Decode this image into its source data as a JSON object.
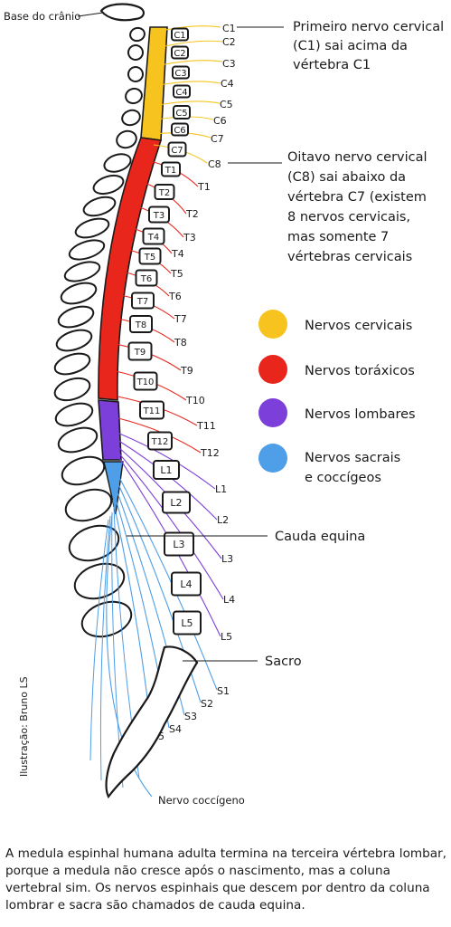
{
  "skull_base_label": "Base do crânio",
  "credit": "Ilustração: Bruno LS",
  "annotations": {
    "c1": [
      "Primeiro nervo cervical",
      "(C1) sai acima da",
      "vértebra C1"
    ],
    "c8": [
      "Oitavo nervo cervical",
      "(C8) sai abaixo da",
      "vértebra C7 (existem",
      "8 nervos cervicais,",
      "mas somente 7",
      "vértebras cervicais"
    ],
    "cauda": "Cauda equina",
    "sacro": "Sacro",
    "coccygeal": "Nervo coccígeno"
  },
  "legend": [
    {
      "label": "Nervos cervicais",
      "color": "#f7c41f"
    },
    {
      "label": "Nervos toráxicos",
      "color": "#e8261c"
    },
    {
      "label": "Nervos lombares",
      "color": "#7c3fd9"
    },
    {
      "label": "Nervos sacrais",
      "label2": "e coccígeos",
      "color": "#4e9ee8"
    }
  ],
  "vertebrae": [
    "C1",
    "C2",
    "C3",
    "C4",
    "C5",
    "C6",
    "C7",
    "T1",
    "T2",
    "T3",
    "T4",
    "T5",
    "T6",
    "T7",
    "T8",
    "T9",
    "T10",
    "T11",
    "T12",
    "L1",
    "L2",
    "L3",
    "L4",
    "L5"
  ],
  "nerves": {
    "cervical": [
      "C1",
      "C2",
      "C3",
      "C4",
      "C5",
      "C6",
      "C7",
      "C8"
    ],
    "thoracic": [
      "T1",
      "T2",
      "T3",
      "T4",
      "T5",
      "T6",
      "T7",
      "T8",
      "T9",
      "T10",
      "T11",
      "T12"
    ],
    "lumbar": [
      "L1",
      "L2",
      "L3",
      "L4",
      "L5"
    ],
    "sacral": [
      "S1",
      "S2",
      "S3",
      "S4",
      "S5"
    ]
  },
  "caption": "A medula espinhal humana adulta termina na terceira vértebra lombar, porque a medula não cresce após o nascimento, mas a coluna vertebral sim. Os nervos espinhais que descem por dentro da coluna lombrar e sacra são chamados de cauda equina."
}
